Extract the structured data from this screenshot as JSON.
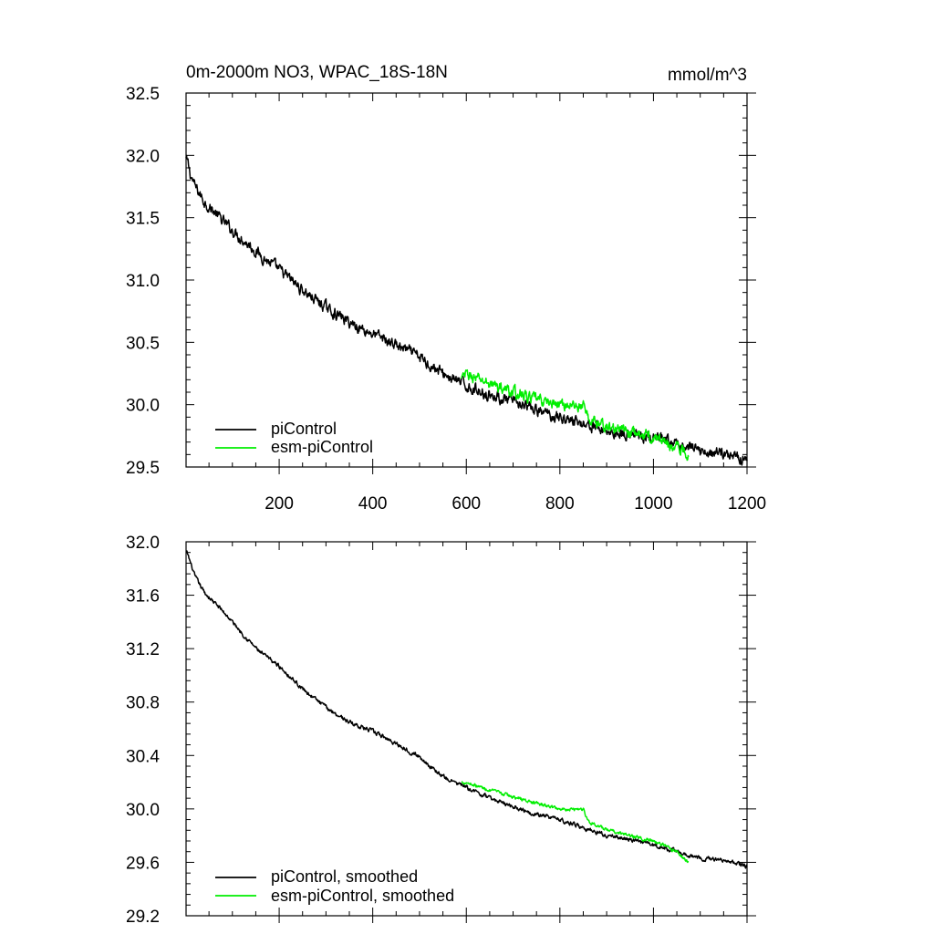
{
  "colors": {
    "piControl": "#000000",
    "esm_piControl": "#00ee00",
    "frame": "#000000"
  },
  "chart_data": [
    {
      "type": "line",
      "title": "0m-2000m NO3, WPAC_18S-18N",
      "units": "mmol/m^3",
      "xlim": [
        1,
        1200
      ],
      "ylim": [
        29.5,
        32.5
      ],
      "xticks": [
        200,
        400,
        600,
        800,
        1000,
        1200
      ],
      "xtick_labels": [
        "200",
        "400",
        "600",
        "800",
        "1000",
        "1200"
      ],
      "yticks": [
        29.5,
        30.0,
        30.5,
        31.0,
        31.5,
        32.0,
        32.5
      ],
      "ytick_labels": [
        "29.5",
        "30.0",
        "30.5",
        "31.0",
        "31.5",
        "32.0",
        "32.5"
      ],
      "legend_position": "bottom-left",
      "series": [
        {
          "name": "piControl",
          "color": "#000000",
          "noise": 0.035,
          "x": [
            1,
            5,
            10,
            20,
            40,
            60,
            80,
            100,
            130,
            160,
            200,
            250,
            300,
            350,
            400,
            450,
            500,
            550,
            600,
            650,
            700,
            750,
            800,
            850,
            900,
            950,
            1000,
            1050,
            1100,
            1150,
            1200
          ],
          "y": [
            31.97,
            31.93,
            31.85,
            31.75,
            31.63,
            31.55,
            31.47,
            31.4,
            31.3,
            31.2,
            31.08,
            30.92,
            30.78,
            30.66,
            30.57,
            30.48,
            30.38,
            30.25,
            30.15,
            30.08,
            30.02,
            29.95,
            29.9,
            29.85,
            29.79,
            29.76,
            29.73,
            29.68,
            29.63,
            29.61,
            29.57
          ]
        },
        {
          "name": "esm-piControl",
          "color": "#00ee00",
          "noise": 0.035,
          "x": [
            590,
            600,
            650,
            700,
            750,
            800,
            850,
            860,
            900,
            950,
            1000,
            1050,
            1075
          ],
          "y": [
            30.2,
            30.24,
            30.17,
            30.1,
            30.04,
            30.0,
            29.99,
            29.89,
            29.82,
            29.78,
            29.74,
            29.66,
            29.6
          ]
        }
      ]
    },
    {
      "type": "line",
      "title": "",
      "units": "",
      "xlim": [
        1,
        1200
      ],
      "ylim": [
        29.2,
        32.0
      ],
      "xticks": [
        200,
        400,
        600,
        800,
        1000,
        1200
      ],
      "xtick_labels": [],
      "yticks": [
        29.2,
        29.6,
        30.0,
        30.4,
        30.8,
        31.2,
        31.6,
        32.0
      ],
      "ytick_labels": [
        "29.2",
        "29.6",
        "30.0",
        "30.4",
        "30.8",
        "31.2",
        "31.6",
        "32.0"
      ],
      "legend_position": "bottom-left",
      "series": [
        {
          "name": "piControl, smoothed",
          "color": "#000000",
          "noise": 0.012,
          "x": [
            1,
            5,
            20,
            40,
            60,
            80,
            100,
            130,
            160,
            200,
            250,
            300,
            350,
            400,
            450,
            500,
            550,
            600,
            650,
            700,
            750,
            800,
            850,
            900,
            950,
            1000,
            1050,
            1100,
            1150,
            1200
          ],
          "y": [
            31.93,
            31.9,
            31.74,
            31.62,
            31.55,
            31.48,
            31.4,
            31.28,
            31.17,
            31.07,
            30.9,
            30.76,
            30.65,
            30.58,
            30.49,
            30.39,
            30.24,
            30.16,
            30.08,
            30.02,
            29.96,
            29.92,
            29.86,
            29.8,
            29.77,
            29.73,
            29.68,
            29.63,
            29.62,
            29.57
          ]
        },
        {
          "name": "esm-piControl, smoothed",
          "color": "#00ee00",
          "noise": 0.01,
          "x": [
            590,
            600,
            650,
            700,
            750,
            800,
            850,
            860,
            900,
            950,
            1000,
            1050,
            1075
          ],
          "y": [
            30.2,
            30.2,
            30.14,
            30.09,
            30.04,
            30.0,
            30.0,
            29.91,
            29.84,
            29.8,
            29.76,
            29.68,
            29.6
          ]
        }
      ]
    }
  ]
}
